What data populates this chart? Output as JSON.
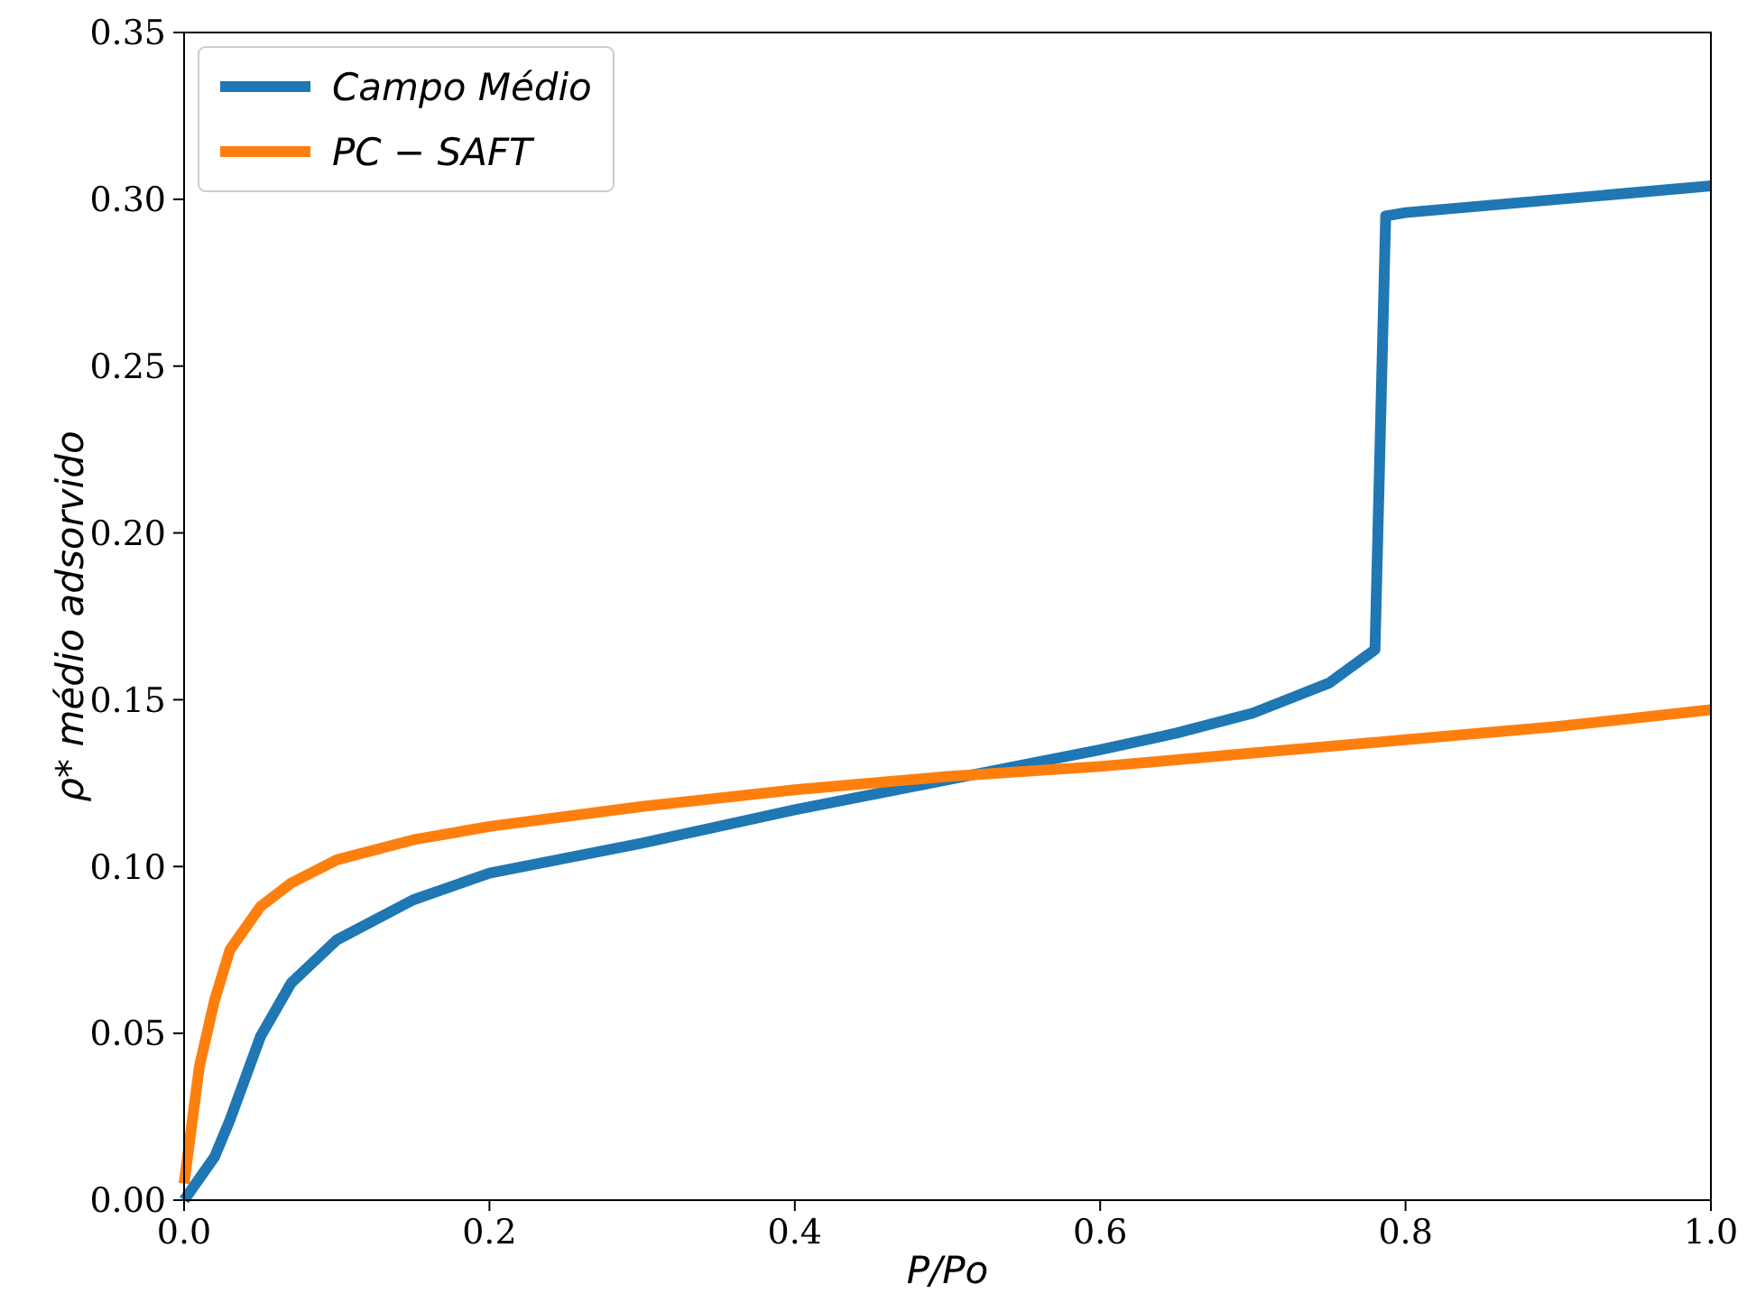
{
  "chart_data": {
    "type": "line",
    "xlabel": "P/Po",
    "ylabel": "ρ* médio adsorvido",
    "xlim": [
      0,
      1
    ],
    "ylim": [
      0,
      0.35
    ],
    "xticks": [
      {
        "value": 0,
        "label": "0.0"
      },
      {
        "value": 0.2,
        "label": "0.2"
      },
      {
        "value": 0.4,
        "label": "0.4"
      },
      {
        "value": 0.6,
        "label": "0.6"
      },
      {
        "value": 0.8,
        "label": "0.8"
      },
      {
        "value": 1,
        "label": "1.0"
      }
    ],
    "yticks": [
      {
        "value": 0,
        "label": "0.00"
      },
      {
        "value": 0.05,
        "label": "0.05"
      },
      {
        "value": 0.1,
        "label": "0.10"
      },
      {
        "value": 0.15,
        "label": "0.15"
      },
      {
        "value": 0.2,
        "label": "0.20"
      },
      {
        "value": 0.25,
        "label": "0.25"
      },
      {
        "value": 0.3,
        "label": "0.30"
      },
      {
        "value": 0.35,
        "label": "0.35"
      }
    ],
    "legend": "top left",
    "grid": false,
    "series": [
      {
        "name": "Campo Médio",
        "color": "#1f77b4",
        "x": [
          0,
          0.02,
          0.03,
          0.05,
          0.07,
          0.1,
          0.15,
          0.2,
          0.3,
          0.4,
          0.5,
          0.6,
          0.65,
          0.7,
          0.75,
          0.78,
          0.787,
          0.8,
          0.9,
          1.0
        ],
        "values": [
          0,
          0.013,
          0.024,
          0.049,
          0.065,
          0.078,
          0.09,
          0.098,
          0.107,
          0.117,
          0.126,
          0.135,
          0.14,
          0.146,
          0.155,
          0.165,
          0.295,
          0.296,
          0.3,
          0.304
        ]
      },
      {
        "name": "PC − SAFT",
        "color": "#ff7f0e",
        "x": [
          0,
          0.01,
          0.02,
          0.03,
          0.05,
          0.07,
          0.1,
          0.15,
          0.2,
          0.3,
          0.4,
          0.5,
          0.6,
          0.7,
          0.8,
          0.9,
          1.0
        ],
        "values": [
          0.005,
          0.04,
          0.06,
          0.075,
          0.088,
          0.095,
          0.102,
          0.108,
          0.112,
          0.118,
          0.123,
          0.127,
          0.13,
          0.134,
          0.138,
          0.142,
          0.147
        ]
      }
    ]
  }
}
